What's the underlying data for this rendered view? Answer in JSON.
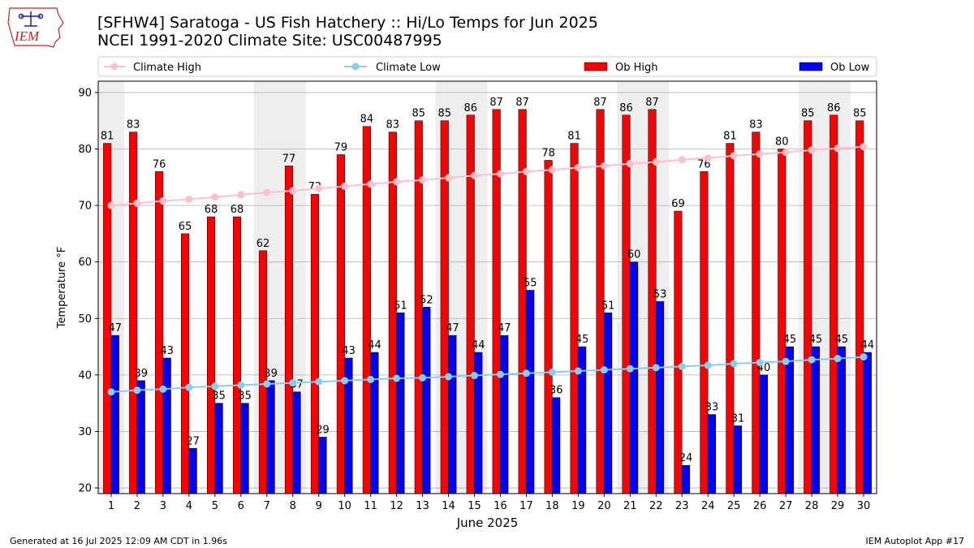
{
  "header": {
    "title_line1": "[SFHW4] Saratoga - US Fish Hatchery :: Hi/Lo Temps for Jun 2025",
    "title_line2": "NCEI 1991-2020 Climate Site: USC00487995",
    "logo_text": "IEM"
  },
  "footer": {
    "generated": "Generated at 16 Jul 2025 12:09 AM CDT in 1.96s",
    "app": "IEM Autoplot App #17"
  },
  "colors": {
    "climate_high": "#ffc0cb",
    "climate_low": "#87ceeb",
    "ob_high": "#ff0000",
    "ob_low": "#0000ff",
    "weekend_shade": "#eeeeee",
    "logo": "#cc2222"
  },
  "chart_data": {
    "type": "bar",
    "xlabel": "June 2025",
    "ylabel": "Temperature °F",
    "ylim": [
      19,
      92
    ],
    "yticks": [
      20,
      30,
      40,
      50,
      60,
      70,
      80,
      90
    ],
    "grid": "horizontal",
    "legend_position": "top",
    "categories": [
      "1",
      "2",
      "3",
      "4",
      "5",
      "6",
      "7",
      "8",
      "9",
      "10",
      "11",
      "12",
      "13",
      "14",
      "15",
      "16",
      "17",
      "18",
      "19",
      "20",
      "21",
      "22",
      "23",
      "24",
      "25",
      "26",
      "27",
      "28",
      "29",
      "30"
    ],
    "weekend_days": [
      1,
      7,
      8,
      14,
      15,
      21,
      22,
      28,
      29
    ],
    "series": [
      {
        "name": "Climate High",
        "kind": "line",
        "values": [
          70.0,
          70.4,
          70.8,
          71.1,
          71.5,
          71.9,
          72.3,
          72.6,
          73.0,
          73.4,
          73.8,
          74.2,
          74.5,
          74.9,
          75.3,
          75.6,
          76.0,
          76.3,
          76.7,
          77.0,
          77.4,
          77.7,
          78.1,
          78.4,
          78.8,
          79.1,
          79.4,
          79.8,
          80.1,
          80.4
        ]
      },
      {
        "name": "Climate Low",
        "kind": "line",
        "values": [
          37.0,
          37.3,
          37.5,
          37.8,
          38.0,
          38.2,
          38.4,
          38.6,
          38.8,
          39.0,
          39.2,
          39.4,
          39.5,
          39.7,
          39.9,
          40.1,
          40.3,
          40.5,
          40.7,
          40.9,
          41.1,
          41.3,
          41.5,
          41.7,
          42.0,
          42.2,
          42.4,
          42.7,
          42.9,
          43.2
        ]
      },
      {
        "name": "Ob High",
        "kind": "bar",
        "values": [
          81,
          83,
          76,
          65,
          68,
          68,
          62,
          77,
          72,
          79,
          84,
          83,
          85,
          85,
          86,
          87,
          87,
          78,
          81,
          87,
          86,
          87,
          69,
          76,
          81,
          83,
          80,
          85,
          86,
          85
        ]
      },
      {
        "name": "Ob Low",
        "kind": "bar",
        "values": [
          47,
          39,
          43,
          27,
          35,
          35,
          39,
          37,
          29,
          43,
          44,
          51,
          52,
          47,
          44,
          47,
          55,
          36,
          45,
          51,
          60,
          53,
          24,
          33,
          31,
          40,
          45,
          45,
          45,
          44
        ]
      }
    ]
  }
}
